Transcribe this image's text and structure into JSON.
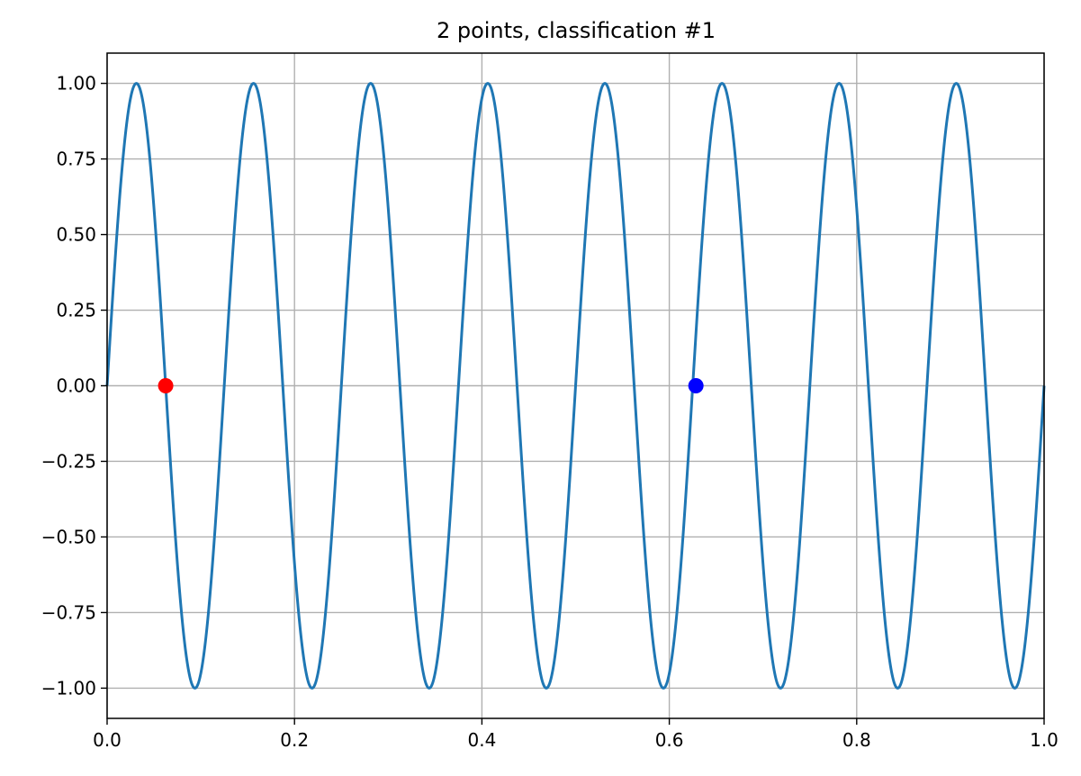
{
  "chart_data": {
    "type": "line",
    "title": "2 points, classification #1",
    "xlabel": "",
    "ylabel": "",
    "xlim": [
      0.0,
      1.0
    ],
    "ylim": [
      -1.1,
      1.1
    ],
    "grid": true,
    "x_ticks": [
      0.0,
      0.2,
      0.4,
      0.6,
      0.8,
      1.0
    ],
    "x_tick_labels": [
      "0.0",
      "0.2",
      "0.4",
      "0.6",
      "0.8",
      "1.0"
    ],
    "y_ticks": [
      1.0,
      0.75,
      0.5,
      0.25,
      0.0,
      -0.25,
      -0.5,
      -0.75,
      -1.0
    ],
    "y_tick_labels": [
      "1.00",
      "0.75",
      "0.50",
      "0.25",
      "0.00",
      "−0.25",
      "−0.50",
      "−0.75",
      "−1.00"
    ],
    "series": [
      {
        "function": "sin(2*pi*8*x)",
        "x_range": [
          0.0,
          1.0
        ],
        "color": "#1f77b4"
      }
    ],
    "points": [
      {
        "x": 0.0625,
        "y": 0.0,
        "color": "#ff0000"
      },
      {
        "x": 0.6284,
        "y": 0.0,
        "color": "#0000ff"
      }
    ],
    "grid_color": "#b0b0b0",
    "axis_color": "#000000"
  }
}
